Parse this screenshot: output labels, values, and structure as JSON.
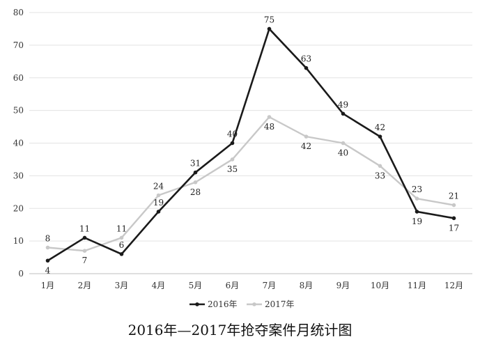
{
  "chart_data": {
    "type": "line",
    "title": "2016年—2017年抢夺案件月统计图",
    "categories": [
      "1月",
      "2月",
      "3月",
      "4月",
      "5月",
      "6月",
      "7月",
      "8月",
      "9月",
      "10月",
      "11月",
      "12月"
    ],
    "series": [
      {
        "name": "2016年",
        "color": "#1a1a1a",
        "values": [
          4,
          11,
          6,
          19,
          31,
          40,
          75,
          63,
          49,
          42,
          19,
          17
        ]
      },
      {
        "name": "2017年",
        "color": "#c8c8c8",
        "values": [
          8,
          7,
          11,
          24,
          28,
          35,
          48,
          42,
          40,
          33,
          23,
          21
        ]
      }
    ],
    "ylim": [
      0,
      80
    ],
    "yticks": [
      0,
      10,
      20,
      30,
      40,
      50,
      60,
      70,
      80
    ],
    "grid": true,
    "legend_position": "bottom"
  }
}
